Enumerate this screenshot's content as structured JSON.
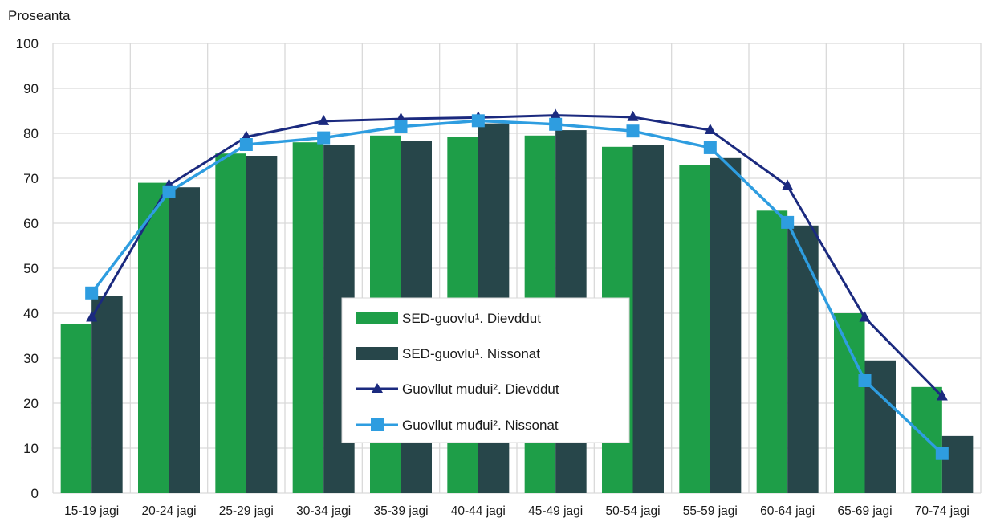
{
  "chart_data": {
    "type": "bar",
    "ylabel": "Proseanta",
    "ylim": [
      0,
      100
    ],
    "yticks": [
      "0",
      "10",
      "20",
      "30",
      "40",
      "50",
      "60",
      "70",
      "80",
      "90",
      "100"
    ],
    "grid": true,
    "legend_position": "center-left",
    "categories": [
      "15-19 jagi",
      "20-24 jagi",
      "25-29 jagi",
      "30-34 jagi",
      "35-39 jagi",
      "40-44 jagi",
      "45-49 jagi",
      "50-54 jagi",
      "55-59 jagi",
      "60-64 jagi",
      "65-69 jagi",
      "70-74 jagi"
    ],
    "series": [
      {
        "name": "SED-guovlu¹. Dievddut",
        "kind": "bar",
        "color": "#1e9e48",
        "values": [
          37.5,
          69,
          75.5,
          78,
          79.5,
          79.2,
          79.5,
          77,
          73,
          62.8,
          40,
          23.6
        ]
      },
      {
        "name": "SED-guovlu¹. Nissonat",
        "kind": "bar",
        "color": "#27464a",
        "values": [
          43.8,
          68,
          75,
          77.5,
          78.3,
          82.2,
          80.7,
          77.5,
          74.5,
          59.5,
          29.5,
          12.7
        ]
      },
      {
        "name": "Guovllut muđui². Dievddut",
        "kind": "line",
        "marker": "triangle",
        "color": "#1b2a7f",
        "values": [
          39,
          68.5,
          79.2,
          82.7,
          83.2,
          83.5,
          84,
          83.6,
          80.7,
          68.3,
          39,
          21.5
        ]
      },
      {
        "name": "Guovllut muđui². Nissonat",
        "kind": "line",
        "marker": "square",
        "color": "#2e9de0",
        "values": [
          44.5,
          67,
          77.5,
          79,
          81.5,
          82.8,
          82,
          80.5,
          76.8,
          60.2,
          25,
          8.8
        ]
      }
    ]
  }
}
